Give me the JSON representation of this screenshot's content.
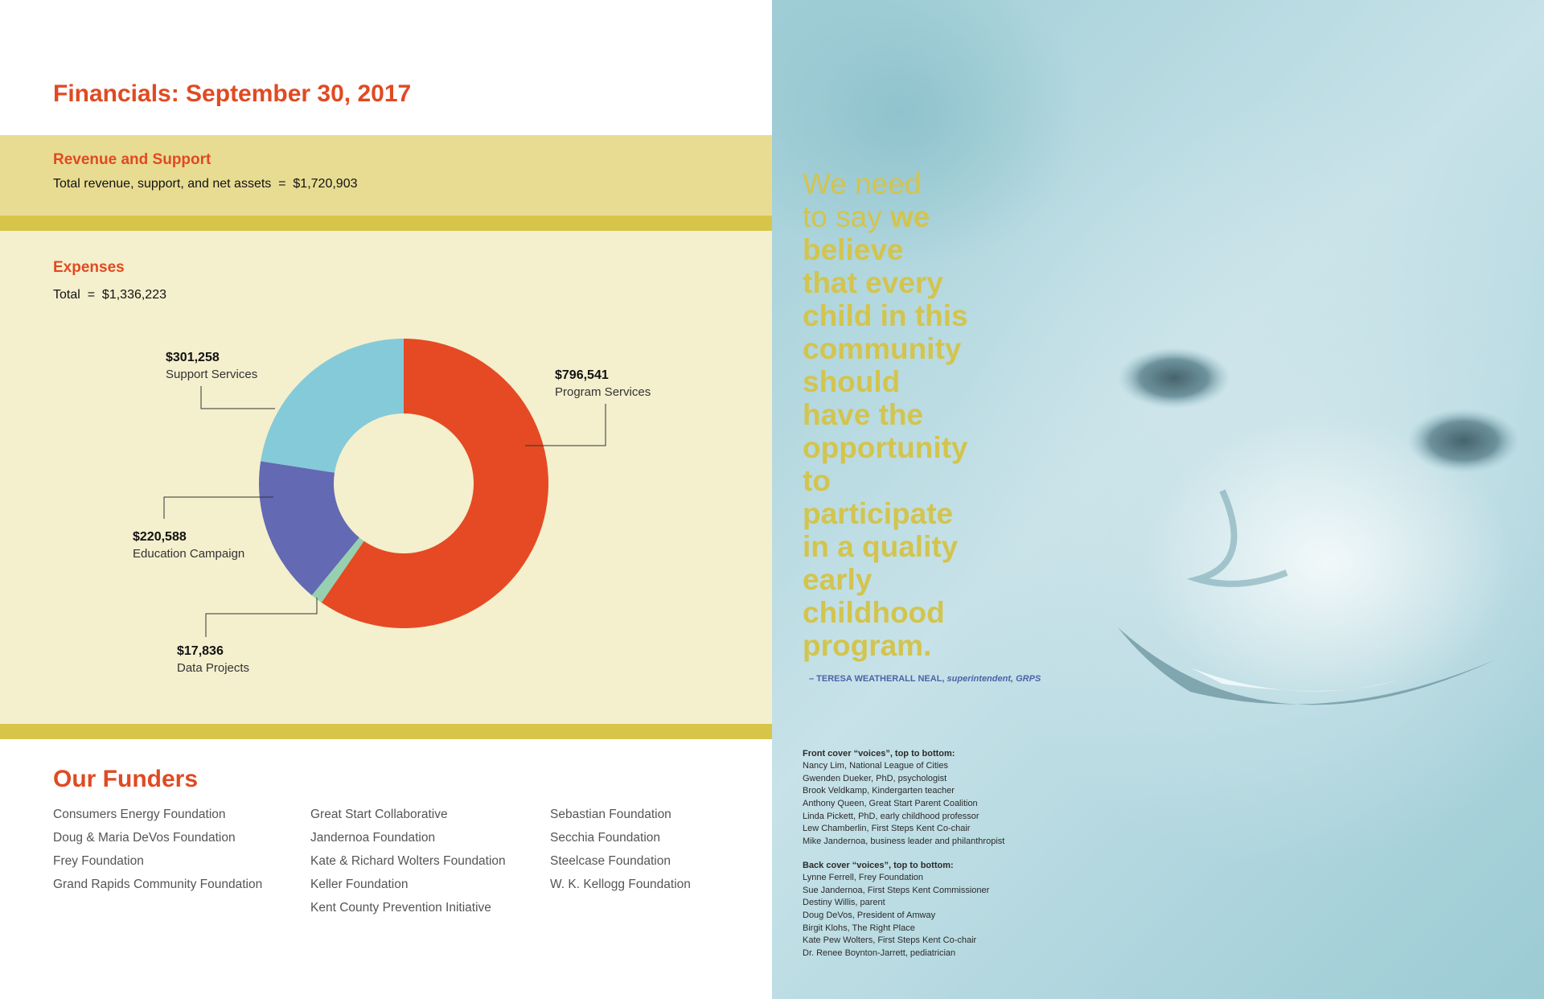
{
  "financials": {
    "title": "Financials: September 30, 2017",
    "revenue": {
      "heading": "Revenue and Support",
      "line_label": "Total revenue, support, and net assets",
      "line_eq": "=",
      "line_value": "$1,720,903"
    },
    "expenses": {
      "heading": "Expenses",
      "total_label": "Total",
      "total_eq": "=",
      "total_value": "$1,336,223"
    }
  },
  "chart_data": {
    "type": "pie",
    "title": "",
    "slices": [
      {
        "label": "Program Services",
        "amount": "$796,541",
        "value": 796541,
        "color": "#e54a24"
      },
      {
        "label": "Data Projects",
        "amount": "$17,836",
        "value": 17836,
        "color": "#96d0b0"
      },
      {
        "label": "Education Campaign",
        "amount": "$220,588",
        "value": 220588,
        "color": "#6369b3"
      },
      {
        "label": "Support Services",
        "amount": "$301,258",
        "value": 301258,
        "color": "#84cad9"
      }
    ],
    "legend": "callouts"
  },
  "funders": {
    "title": "Our Funders",
    "columns": [
      [
        "Consumers Energy Foundation",
        "Doug & Maria DeVos Foundation",
        "Frey Foundation",
        "Grand Rapids Community Foundation"
      ],
      [
        "Great Start Collaborative",
        "Jandernoa Foundation",
        "Kate & Richard Wolters Foundation",
        "Keller Foundation",
        "Kent County Prevention Initiative"
      ],
      [
        "Sebastian Foundation",
        "Secchia Foundation",
        "Steelcase Foundation",
        "W. K. Kellogg Foundation"
      ]
    ]
  },
  "quote": {
    "light_a": "We need",
    "light_b": "to say ",
    "bold_a": "we",
    "bold_lines": [
      "believe",
      "that every",
      "child in this",
      "community",
      "should",
      "have the",
      "opportunity",
      "to",
      "participate",
      "in a quality",
      "early",
      "childhood",
      "program."
    ],
    "attribution_name": "– TERESA WEATHERALL NEAL,",
    "attribution_role": "superintendent, GRPS"
  },
  "voices": {
    "front_heading": "Front cover “voices”, top to bottom:",
    "front": [
      "Nancy Lim, National League of Cities",
      "Gwenden Dueker, PhD, psychologist",
      "Brook Veldkamp, Kindergarten teacher",
      "Anthony Queen, Great Start Parent Coalition",
      "Linda Pickett, PhD, early childhood professor",
      "Lew Chamberlin, First Steps Kent Co-chair",
      "Mike Jandernoa, business leader and philanthropist"
    ],
    "back_heading": "Back cover “voices”, top to bottom:",
    "back": [
      "Lynne Ferrell, Frey Foundation",
      "Sue Jandernoa, First Steps Kent Commissioner",
      "Destiny Willis, parent",
      "Doug DeVos, President of Amway",
      "Birgit Klohs, The Right Place",
      "Kate Pew Wolters, First Steps Kent Co-chair",
      "Dr. Renee Boynton-Jarrett, pediatrician"
    ]
  }
}
